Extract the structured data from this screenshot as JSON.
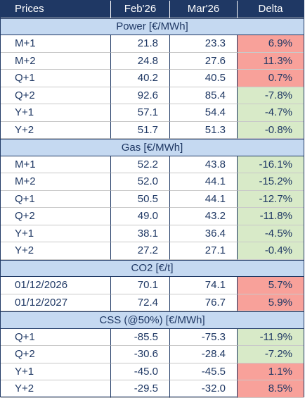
{
  "table": {
    "header": [
      "Prices",
      "Feb'26",
      "Mar'26",
      "Delta"
    ],
    "sections": [
      {
        "title": "Power [€/MWh]",
        "rows": [
          [
            "M+1",
            "21.8",
            "23.3",
            "6.9%"
          ],
          [
            "M+2",
            "24.8",
            "27.6",
            "11.3%"
          ],
          [
            "Q+1",
            "40.2",
            "40.5",
            "0.7%"
          ],
          [
            "Q+2",
            "92.6",
            "85.4",
            "-7.8%"
          ],
          [
            "Y+1",
            "57.1",
            "54.4",
            "-4.7%"
          ],
          [
            "Y+2",
            "51.7",
            "51.3",
            "-0.8%"
          ]
        ]
      },
      {
        "title": "Gas [€/MWh]",
        "rows": [
          [
            "M+1",
            "52.2",
            "43.8",
            "-16.1%"
          ],
          [
            "M+2",
            "52.0",
            "44.1",
            "-15.2%"
          ],
          [
            "Q+1",
            "50.5",
            "44.1",
            "-12.7%"
          ],
          [
            "Q+2",
            "49.0",
            "43.2",
            "-11.8%"
          ],
          [
            "Y+1",
            "38.1",
            "36.4",
            "-4.5%"
          ],
          [
            "Y+2",
            "27.2",
            "27.1",
            "-0.4%"
          ]
        ]
      },
      {
        "title": "CO2 [€/t]",
        "rows": [
          [
            "01/12/2026",
            "70.1",
            "74.1",
            "5.7%"
          ],
          [
            "01/12/2027",
            "72.4",
            "76.7",
            "5.9%"
          ]
        ]
      },
      {
        "title": "CSS (@50%) [€/MWh]",
        "rows": [
          [
            "Q+1",
            "-85.5",
            "-75.3",
            "-11.9%"
          ],
          [
            "Q+2",
            "-30.6",
            "-28.4",
            "-7.2%"
          ],
          [
            "Y+1",
            "-45.0",
            "-45.5",
            "1.1%"
          ],
          [
            "Y+2",
            "-29.5",
            "-32.0",
            "8.5%"
          ]
        ]
      }
    ]
  }
}
